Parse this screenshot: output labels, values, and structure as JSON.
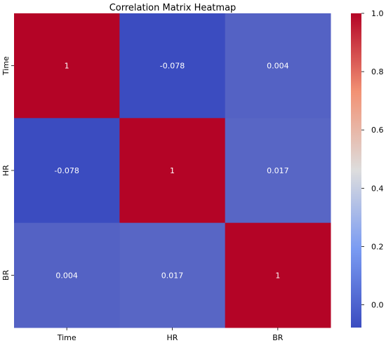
{
  "chart_data": {
    "type": "heatmap",
    "title": "Correlation Matrix Heatmap",
    "x_categories": [
      "Time",
      "HR",
      "BR"
    ],
    "y_categories": [
      "Time",
      "HR",
      "BR"
    ],
    "values": [
      [
        1,
        -0.078,
        0.004
      ],
      [
        -0.078,
        1,
        0.017
      ],
      [
        0.004,
        0.017,
        1
      ]
    ],
    "value_labels": [
      [
        "1",
        "-0.078",
        "0.004"
      ],
      [
        "-0.078",
        "1",
        "0.017"
      ],
      [
        "0.004",
        "0.017",
        "1"
      ]
    ],
    "colorbar": {
      "min": -0.078,
      "max": 1.0,
      "ticks": [
        0.0,
        0.2,
        0.4,
        0.6,
        0.8,
        1.0
      ],
      "tick_labels": [
        "0.0",
        "0.2",
        "0.4",
        "0.6",
        "0.8",
        "1.0"
      ],
      "colormap": "coolwarm"
    },
    "colors": {
      "low": "#3b4cc0",
      "mid": "#dddddd",
      "high": "#b40426"
    }
  }
}
